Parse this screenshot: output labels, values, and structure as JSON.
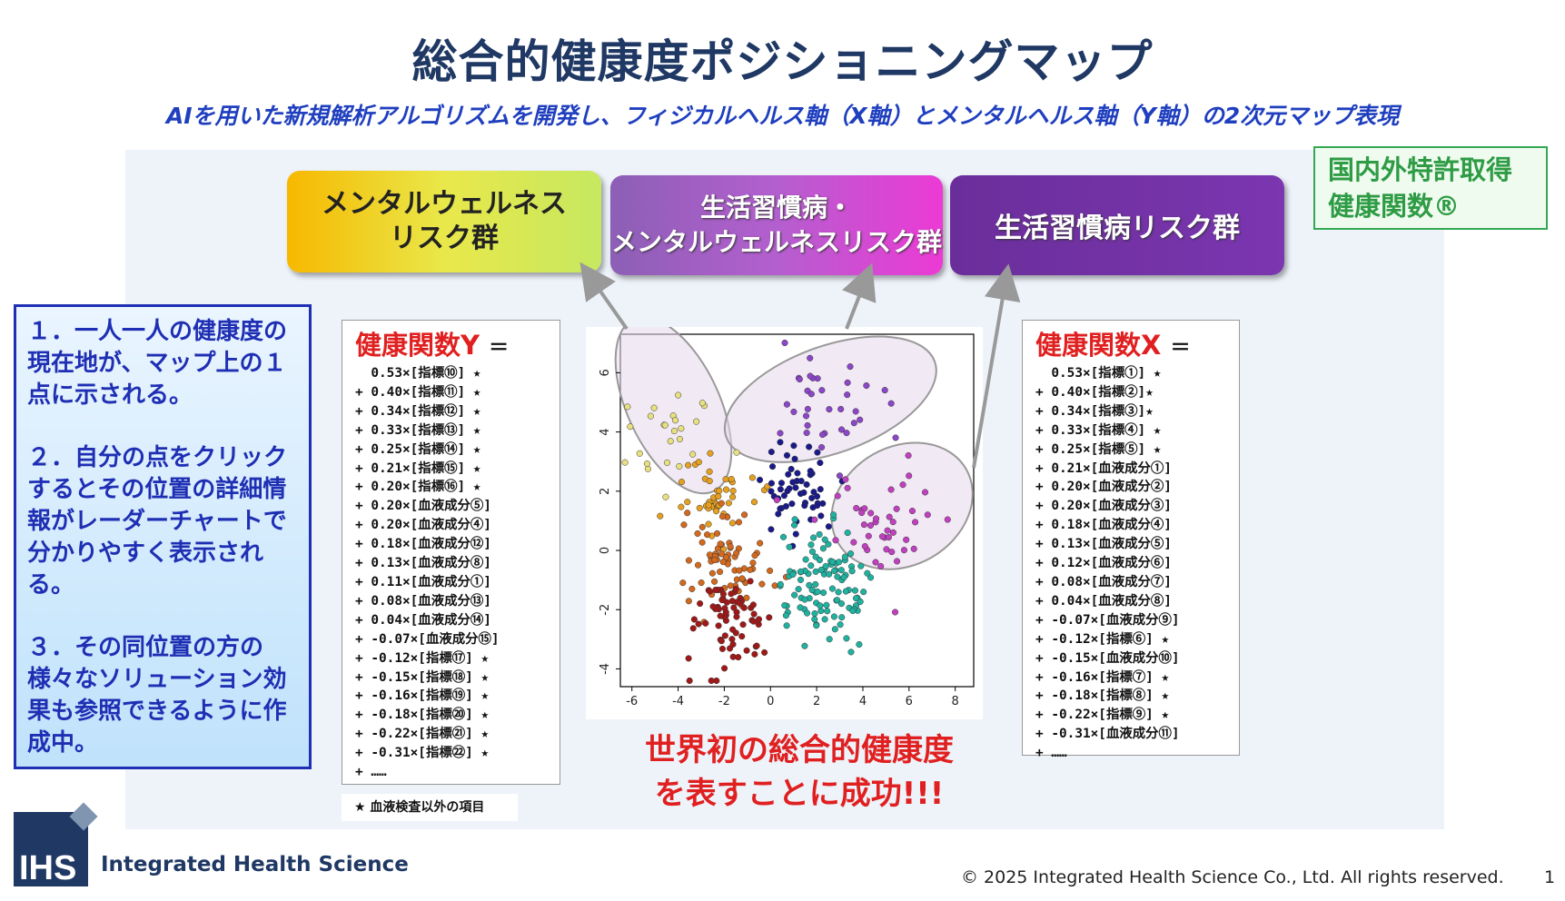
{
  "title": "総合的健康度ポジショニングマップ",
  "subtitle": "AIを用いた新規解析アルゴリズムを開発し、フィジカルヘルス軸（X軸）とメンタルヘルス軸（Y軸）の2次元マップ表現",
  "patent": {
    "line1": "国内外特許取得",
    "line2": "健康関数®"
  },
  "groups": {
    "mental_l1": "メンタルウェルネス",
    "mental_l2": "リスク群",
    "both_l1": "生活習慣病・",
    "both_l2": "メンタルウェルネスリスク群",
    "lifestyle": "生活習慣病リスク群"
  },
  "points": [
    "１．一人一人の健康度の現在地が、マップ上の１点に示される。",
    "２．自分の点をクリックするとその位置の詳細情報がレーダーチャートで分かりやすく表示される。",
    "３．その同位置の方の様々なソリューション効果も参照できるように作成中。"
  ],
  "formula_y": {
    "head": "健康関数Y",
    "eq": "＝",
    "rows": [
      "  0.53×[指標⑩] ★",
      "+ 0.40×[指標⑪] ★",
      "+ 0.34×[指標⑫] ★",
      "+ 0.33×[指標⑬] ★",
      "+ 0.25×[指標⑭] ★",
      "+ 0.21×[指標⑮] ★",
      "+ 0.20×[指標⑯] ★",
      "+ 0.20×[血液成分⑤]",
      "+ 0.20×[血液成分④]",
      "+ 0.18×[血液成分⑫]",
      "+ 0.13×[血液成分⑧]",
      "+ 0.11×[血液成分①]",
      "+ 0.08×[血液成分⑬]",
      "+ 0.04×[血液成分⑭]",
      "+ -0.07×[血液成分⑮]",
      "+ -0.12×[指標⑰] ★",
      "+ -0.15×[指標⑱] ★",
      "+ -0.16×[指標⑲] ★",
      "+ -0.18×[指標⑳] ★",
      "+ -0.22×[指標㉑] ★",
      "+ -0.31×[指標㉒] ★",
      "+ ……"
    ]
  },
  "formula_x": {
    "head": "健康関数X",
    "eq": "＝",
    "rows": [
      "  0.53×[指標①] ★",
      "+ 0.40×[指標②]★",
      "+ 0.34×[指標③]★",
      "+ 0.33×[指標④] ★",
      "+ 0.25×[指標⑤] ★",
      "+ 0.21×[血液成分①]",
      "+ 0.20×[血液成分②]",
      "+ 0.20×[血液成分③]",
      "+ 0.18×[血液成分④]",
      "+ 0.13×[血液成分⑤]",
      "+ 0.12×[血液成分⑥]",
      "+ 0.08×[血液成分⑦]",
      "+ 0.04×[血液成分⑧]",
      "+ -0.07×[血液成分⑨]",
      "+ -0.12×[指標⑥] ★",
      "+ -0.15×[血液成分⑩]",
      "+ -0.16×[指標⑦] ★",
      "+ -0.18×[指標⑧] ★",
      "+ -0.22×[指標⑨] ★",
      "+ -0.31×[血液成分⑪]",
      "+ ……"
    ]
  },
  "note": "★ 血液検査以外の項目",
  "success": {
    "line1": "世界初の総合的健康度",
    "line2": "を表すことに成功!!!"
  },
  "logo_text": "IHS",
  "company": "Integrated Health Science",
  "copyright": "© 2025 Integrated Health Science Co., Ltd. All rights reserved.",
  "page_number": "1",
  "colors": {
    "title": "#1f3864",
    "subtitle": "#1f3fbf",
    "highlight": "#e02020",
    "patent": "#2e9b45",
    "box_text": "#1f2fb4"
  },
  "chart_data": {
    "type": "scatter",
    "xlim": [
      -6.5,
      8.8
    ],
    "ylim": [
      -4.6,
      7.3
    ],
    "x_ticks": [
      "-6",
      "-4",
      "-2",
      "0",
      "2",
      "4",
      "6",
      "8"
    ],
    "y_ticks": [
      "-4",
      "-2",
      "0",
      "2",
      "4",
      "6"
    ],
    "clusters": [
      {
        "color": "#e8e080",
        "cx": -4.3,
        "cy": 4.0,
        "sx": 1.0,
        "sy": 1.1,
        "n": 25
      },
      {
        "color": "#e6a020",
        "cx": -2.4,
        "cy": 1.8,
        "sx": 0.9,
        "sy": 0.7,
        "n": 45
      },
      {
        "color": "#d2691e",
        "cx": -1.8,
        "cy": -0.2,
        "sx": 0.9,
        "sy": 0.8,
        "n": 70
      },
      {
        "color": "#a01818",
        "cx": -1.8,
        "cy": -2.4,
        "sx": 0.9,
        "sy": 0.8,
        "n": 70
      },
      {
        "color": "#1a1a8a",
        "cx": 1.2,
        "cy": 2.0,
        "sx": 0.7,
        "sy": 0.8,
        "n": 55
      },
      {
        "color": "#20b2a0",
        "cx": 2.2,
        "cy": -1.3,
        "sx": 1.0,
        "sy": 1.0,
        "n": 110
      },
      {
        "color": "#8c46c8",
        "cx": 2.0,
        "cy": 5.2,
        "sx": 1.4,
        "sy": 0.8,
        "n": 35
      },
      {
        "color": "#c040c0",
        "cx": 4.8,
        "cy": 1.0,
        "sx": 1.3,
        "sy": 1.0,
        "n": 45
      }
    ],
    "ellipses": [
      {
        "cx": -4.2,
        "cy": 4.9,
        "rx": 2.0,
        "ry": 3.2,
        "rot": -25
      },
      {
        "cx": 2.6,
        "cy": 5.1,
        "rx": 4.8,
        "ry": 1.8,
        "rot": -20
      },
      {
        "cx": 5.7,
        "cy": 1.5,
        "rx": 3.2,
        "ry": 2.0,
        "rot": -30
      }
    ]
  }
}
